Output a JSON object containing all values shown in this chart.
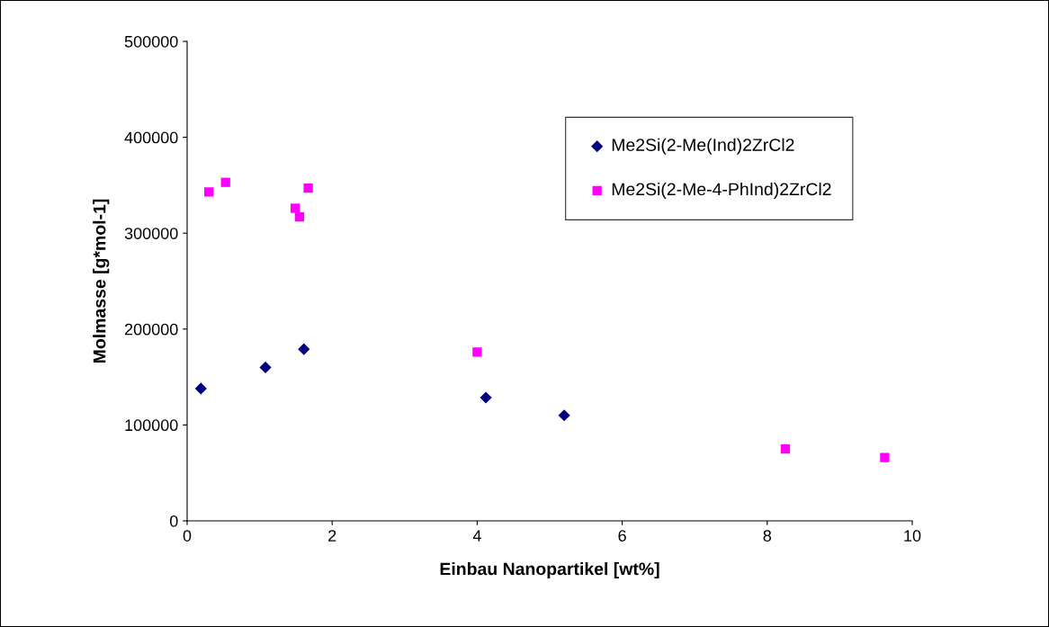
{
  "chart_data": {
    "type": "scatter",
    "xlabel": "Einbau Nanopartikel [wt%]",
    "ylabel": "Molmasse [g*mol-1]",
    "xlim": [
      0,
      10
    ],
    "xticks": [
      0,
      2,
      4,
      6,
      8,
      10
    ],
    "ylim": [
      0,
      500000
    ],
    "yticks": [
      0,
      100000,
      200000,
      300000,
      400000,
      500000
    ],
    "grid": false,
    "legend": "top right",
    "series": [
      {
        "name": "Me2Si(2-Me(Ind)2ZrCl2",
        "color": "#000080",
        "marker": "diamond",
        "x": [
          0.19,
          1.08,
          1.61,
          4.12,
          5.2
        ],
        "values": [
          138000,
          160000,
          179000,
          128500,
          110000
        ]
      },
      {
        "name": "Me2Si(2-Me-4-PhInd)2ZrCl2",
        "color": "#ff00ff",
        "marker": "square",
        "x": [
          0.3,
          0.53,
          1.49,
          1.55,
          1.67,
          4.0,
          8.25,
          9.62
        ],
        "values": [
          343000,
          353000,
          326000,
          317000,
          347000,
          176000,
          75000,
          66000
        ]
      }
    ]
  }
}
